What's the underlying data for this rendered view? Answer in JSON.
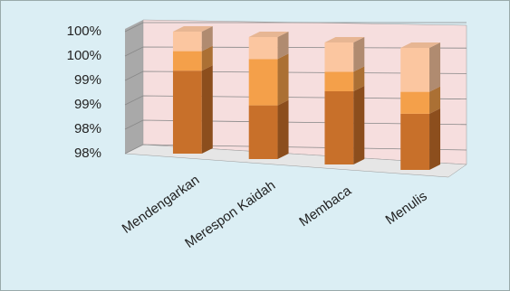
{
  "chart_data": {
    "type": "stacked-bar-3d",
    "categories": [
      "Mendengarkan",
      "Merespon Kaidah",
      "Membaca",
      "Menulis"
    ],
    "series": [
      {
        "color": "#c8702a",
        "values": [
          99.2,
          98.6,
          99.0,
          98.65
        ]
      },
      {
        "color": "#f4a04a",
        "values": [
          0.4,
          0.95,
          0.4,
          0.45
        ]
      },
      {
        "color": "#fbc6a0",
        "values": [
          0.4,
          0.45,
          0.6,
          0.9
        ]
      }
    ],
    "ylim": [
      97.5,
      100
    ],
    "yticks": [
      {
        "value": 100,
        "label": "100%"
      },
      {
        "value": 99.5,
        "label": "100%"
      },
      {
        "value": 99,
        "label": "99%"
      },
      {
        "value": 98.5,
        "label": "99%"
      },
      {
        "value": 98,
        "label": "98%"
      },
      {
        "value": 97.5,
        "label": "98%"
      }
    ],
    "grid": true
  }
}
